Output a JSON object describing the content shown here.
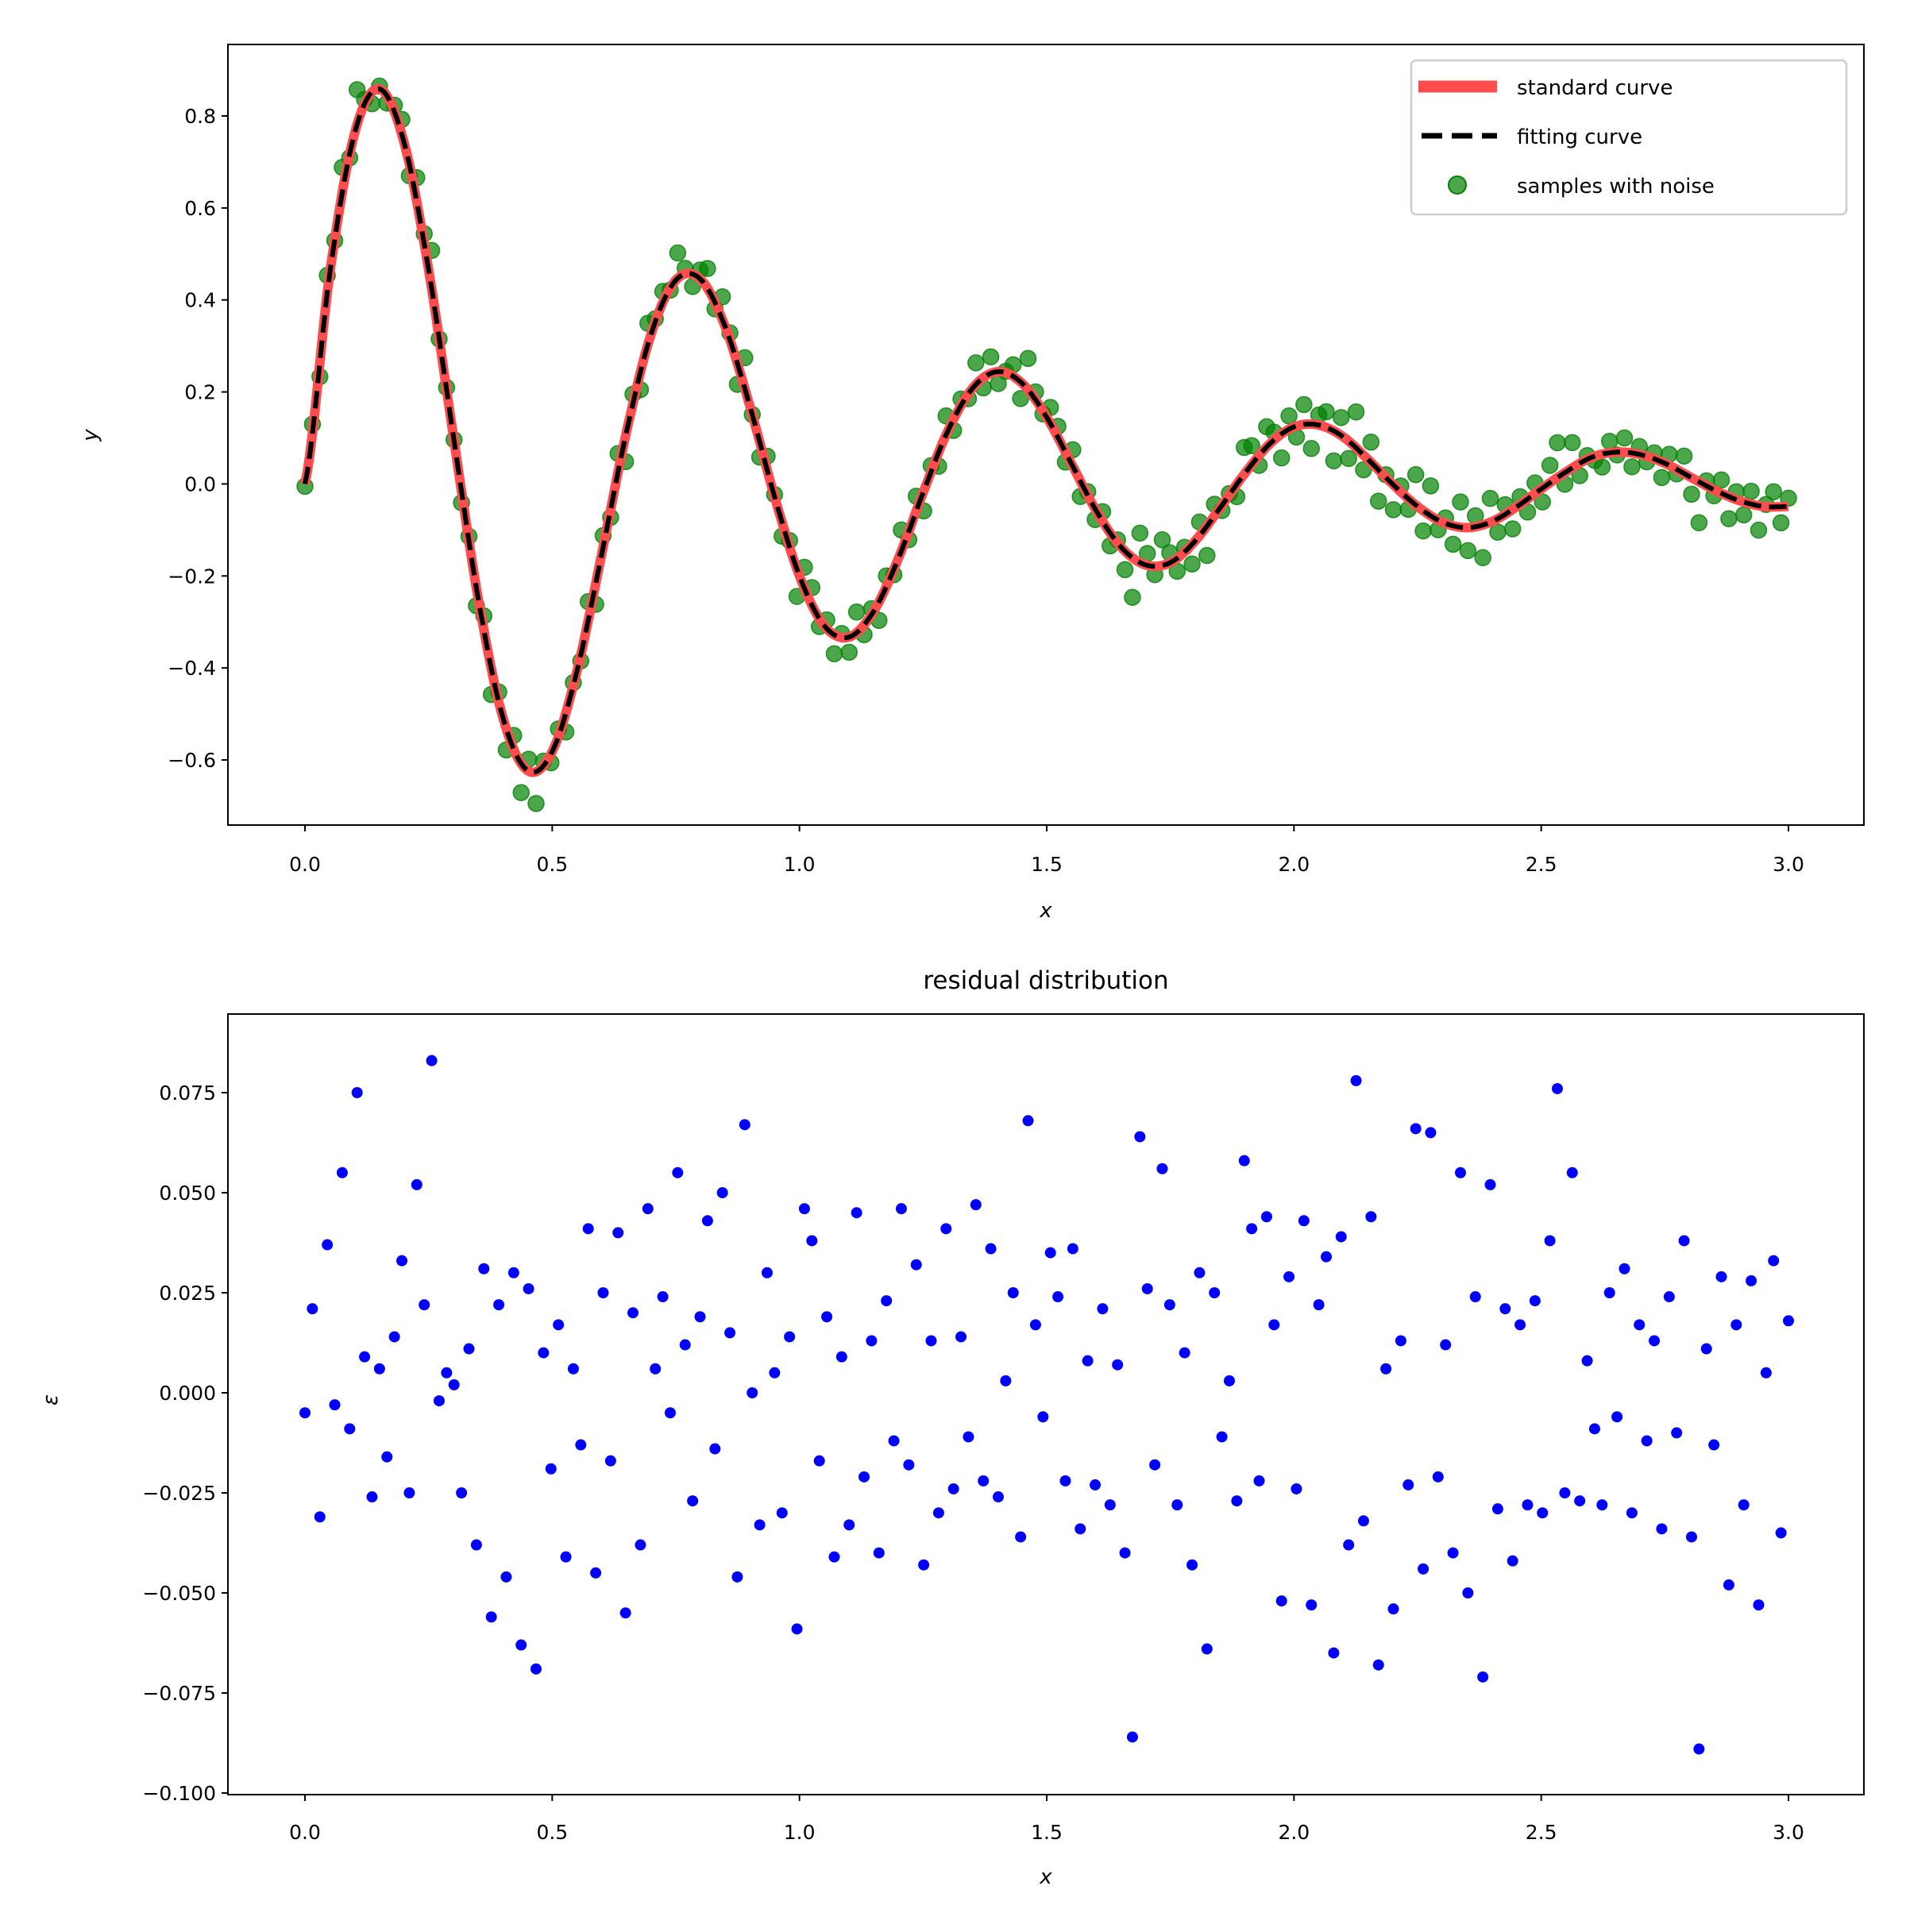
{
  "chart_data": [
    {
      "type": "line+scatter",
      "xlabel": "x",
      "ylabel": "y",
      "xlim": [
        -0.15,
        3.15
      ],
      "ylim": [
        -0.745,
        0.935
      ],
      "xticks": [
        "0.0",
        "0.5",
        "1.0",
        "1.5",
        "2.0",
        "2.5",
        "3.0"
      ],
      "xtick_values": [
        0,
        0.5,
        1,
        1.5,
        2,
        2.5,
        3
      ],
      "yticks": [
        "−0.6",
        "−0.4",
        "−0.2",
        "0.0",
        "0.2",
        "0.4",
        "0.6",
        "0.8"
      ],
      "ytick_values": [
        -0.6,
        -0.4,
        -0.2,
        0,
        0.2,
        0.4,
        0.6,
        0.8
      ],
      "legend_placement": "top-right",
      "legend": [
        "standard curve",
        "fitting curve",
        "samples with noise"
      ],
      "colors": {
        "standard": "#ff4d4d",
        "fitting": "#000000",
        "samples": "#008000"
      },
      "curve_x": [
        0,
        0.05,
        0.1,
        0.15,
        0.2,
        0.25,
        0.3,
        0.35,
        0.4,
        0.45,
        0.5,
        0.55,
        0.6,
        0.65,
        0.7,
        0.75,
        0.8,
        0.85,
        0.9,
        0.95,
        1.0,
        1.05,
        1.1,
        1.15,
        1.2,
        1.25,
        1.3,
        1.35,
        1.4,
        1.45,
        1.5,
        1.55,
        1.6,
        1.65,
        1.7,
        1.75,
        1.8,
        1.85,
        1.9,
        1.95,
        2.0,
        2.05,
        2.1,
        2.15,
        2.2,
        2.25,
        2.3,
        2.35,
        2.4,
        2.45,
        2.5,
        2.55,
        2.6,
        2.65,
        2.7,
        2.75,
        2.8,
        2.85,
        2.9,
        2.95,
        3.0
      ],
      "standard_curve_y": [
        0,
        0.456,
        0.761,
        0.859,
        0.744,
        0.466,
        0.105,
        -0.247,
        -0.507,
        -0.623,
        -0.582,
        -0.407,
        -0.153,
        0.112,
        0.326,
        0.443,
        0.445,
        0.341,
        0.168,
        -0.029,
        -0.2,
        -0.308,
        -0.333,
        -0.277,
        -0.162,
        -0.019,
        0.115,
        0.208,
        0.244,
        0.219,
        0.145,
        0.044,
        -0.058,
        -0.137,
        -0.176,
        -0.171,
        -0.124,
        -0.053,
        0.022,
        0.086,
        0.124,
        0.128,
        0.102,
        0.053,
        -0.001,
        -0.049,
        -0.083,
        -0.095,
        -0.082,
        -0.05,
        -0.011,
        0.026,
        0.057,
        0.069,
        0.064,
        0.045,
        0.016,
        -0.013,
        -0.036,
        -0.049,
        -0.049
      ],
      "fitting_curve_y": [
        0,
        0.456,
        0.761,
        0.859,
        0.744,
        0.466,
        0.105,
        -0.247,
        -0.507,
        -0.623,
        -0.582,
        -0.407,
        -0.153,
        0.112,
        0.326,
        0.443,
        0.445,
        0.341,
        0.168,
        -0.029,
        -0.2,
        -0.308,
        -0.333,
        -0.277,
        -0.162,
        -0.019,
        0.115,
        0.208,
        0.244,
        0.219,
        0.145,
        0.044,
        -0.058,
        -0.137,
        -0.176,
        -0.171,
        -0.124,
        -0.053,
        0.022,
        0.086,
        0.124,
        0.128,
        0.102,
        0.053,
        -0.001,
        -0.049,
        -0.083,
        -0.095,
        -0.082,
        -0.05,
        -0.011,
        0.026,
        0.057,
        0.069,
        0.064,
        0.045,
        0.016,
        -0.013,
        -0.036,
        -0.049,
        -0.049
      ],
      "samples_x_range": [
        0,
        3
      ],
      "samples_count": 200
    },
    {
      "type": "scatter",
      "title": "residual distribution",
      "xlabel": "x",
      "ylabel": "ε",
      "xlim": [
        -0.15,
        3.15
      ],
      "ylim": [
        -0.102,
        0.094
      ],
      "xticks": [
        "0.0",
        "0.5",
        "1.0",
        "1.5",
        "2.0",
        "2.5",
        "3.0"
      ],
      "xtick_values": [
        0,
        0.5,
        1,
        1.5,
        2,
        2.5,
        3
      ],
      "yticks": [
        "−0.100",
        "−0.075",
        "−0.050",
        "−0.025",
        "0.000",
        "0.025",
        "0.050",
        "0.075"
      ],
      "ytick_values": [
        -0.1,
        -0.075,
        -0.05,
        -0.025,
        0,
        0.025,
        0.05,
        0.075
      ],
      "color": "#0000ff",
      "x_range": [
        0,
        3
      ],
      "residuals": [
        -0.005,
        0.021,
        -0.031,
        0.037,
        -0.003,
        0.055,
        -0.009,
        0.075,
        0.009,
        -0.026,
        0.006,
        -0.016,
        0.014,
        0.033,
        -0.025,
        0.052,
        0.022,
        0.083,
        -0.002,
        0.005,
        0.002,
        -0.025,
        0.011,
        -0.038,
        0.031,
        -0.056,
        0.022,
        -0.046,
        0.03,
        -0.063,
        0.026,
        -0.069,
        0.01,
        -0.019,
        0.017,
        -0.041,
        0.006,
        -0.013,
        0.041,
        -0.045,
        0.025,
        -0.017,
        0.04,
        -0.055,
        0.02,
        -0.038,
        0.046,
        0.006,
        0.024,
        -0.005,
        0.055,
        0.012,
        -0.027,
        0.019,
        0.043,
        -0.014,
        0.05,
        0.015,
        -0.046,
        0.067,
        0.0,
        -0.033,
        0.03,
        0.005,
        -0.03,
        0.014,
        -0.059,
        0.046,
        0.038,
        -0.017,
        0.019,
        -0.041,
        0.009,
        -0.033,
        0.045,
        -0.021,
        0.013,
        -0.04,
        0.023,
        -0.012,
        0.046,
        -0.018,
        0.032,
        -0.043,
        0.013,
        -0.03,
        0.041,
        -0.024,
        0.014,
        -0.011,
        0.047,
        -0.022,
        0.036,
        -0.026,
        0.003,
        0.025,
        -0.036,
        0.068,
        0.017,
        -0.006,
        0.035,
        0.024,
        -0.022,
        0.036,
        -0.034,
        0.008,
        -0.023,
        0.021,
        -0.028,
        0.007,
        -0.04,
        -0.086,
        0.064,
        0.026,
        -0.018,
        0.056,
        0.022,
        -0.028,
        0.01,
        -0.043,
        0.03,
        -0.064,
        0.025,
        -0.011,
        0.003,
        -0.027,
        0.058,
        0.041,
        -0.022,
        0.044,
        0.017,
        -0.052,
        0.029,
        -0.024,
        0.043,
        -0.053,
        0.022,
        0.034,
        -0.065,
        0.039,
        -0.038,
        0.078,
        -0.032,
        0.044,
        -0.068,
        0.006,
        -0.054,
        0.013,
        -0.023,
        0.066,
        -0.044,
        0.065,
        -0.021,
        0.012,
        -0.04,
        0.055,
        -0.05,
        0.024,
        -0.071,
        0.052,
        -0.029,
        0.021,
        -0.042,
        0.017,
        -0.028,
        0.023,
        -0.03,
        0.038,
        0.076,
        -0.025,
        0.055,
        -0.027,
        0.008,
        -0.009,
        -0.028,
        0.025,
        -0.006,
        0.031,
        -0.03,
        0.017,
        -0.012,
        0.013,
        -0.034,
        0.024,
        -0.01,
        0.038,
        -0.036,
        -0.089,
        0.011,
        -0.013,
        0.029,
        -0.048,
        0.017,
        -0.028,
        0.028,
        -0.053,
        0.005,
        0.033,
        -0.035,
        0.018
      ]
    }
  ]
}
